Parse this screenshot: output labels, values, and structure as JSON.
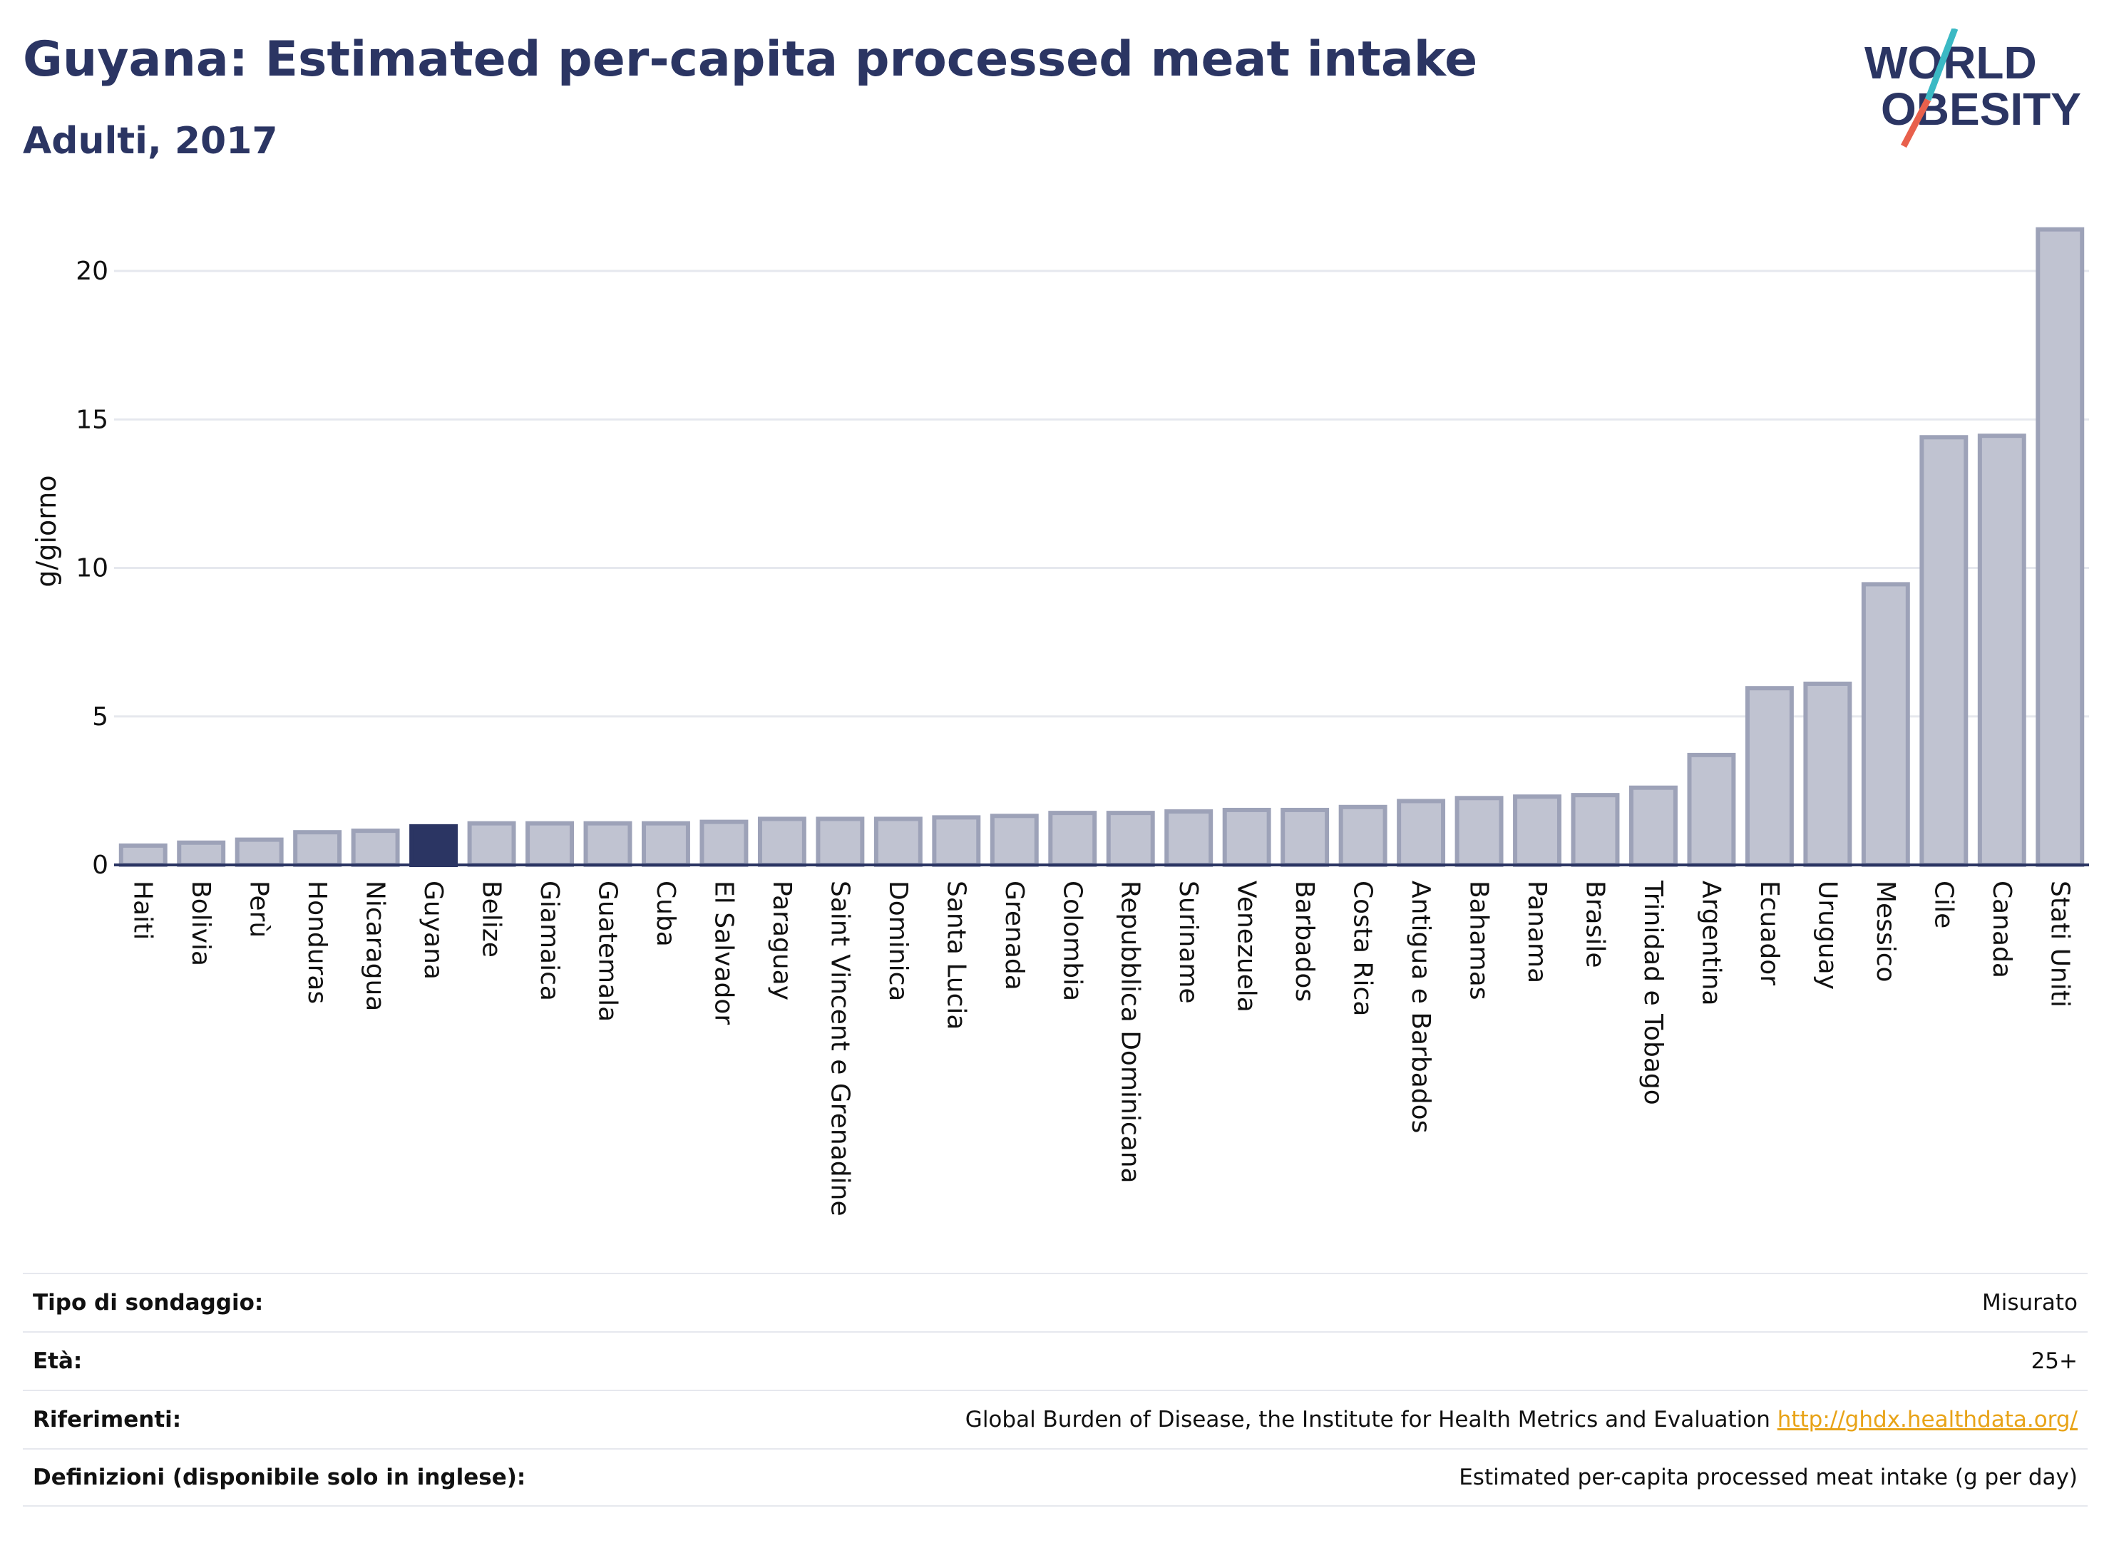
{
  "header": {
    "title": "Guyana: Estimated per-capita processed meat intake",
    "subtitle": "Adulti, 2017"
  },
  "logo": {
    "line1": "WORLD",
    "line2": "OBESITY",
    "accent_colors": [
      "#3bb9c4",
      "#e8604c"
    ]
  },
  "colors": {
    "bar": "#c0c3d1",
    "bar_border": "#9da2b8",
    "highlight": "#2b3563",
    "axis": "#2b3563",
    "grid": "#e6e8ee"
  },
  "chart_data": {
    "type": "bar",
    "title": "Guyana: Estimated per-capita processed meat intake",
    "subtitle": "Adulti, 2017",
    "ylabel": "g/giorno",
    "xlabel": "",
    "ylim": [
      0,
      22
    ],
    "yticks": [
      0,
      5,
      10,
      15,
      20
    ],
    "grid": true,
    "highlight": "Guyana",
    "categories": [
      "Haiti",
      "Bolivia",
      "Perù",
      "Honduras",
      "Nicaragua",
      "Guyana",
      "Belize",
      "Giamaica",
      "Guatemala",
      "Cuba",
      "El Salvador",
      "Paraguay",
      "Saint Vincent e Grenadine",
      "Dominica",
      "Santa Lucia",
      "Grenada",
      "Colombia",
      "Repubblica Dominicana",
      "Suriname",
      "Venezuela",
      "Barbados",
      "Costa Rica",
      "Antigua e Barbados",
      "Bahamas",
      "Panama",
      "Brasile",
      "Trinidad e Tobago",
      "Argentina",
      "Ecuador",
      "Uruguay",
      "Messico",
      "Cile",
      "Canada",
      "Stati Uniti"
    ],
    "values": [
      0.65,
      0.75,
      0.85,
      1.1,
      1.15,
      1.3,
      1.4,
      1.4,
      1.4,
      1.4,
      1.45,
      1.55,
      1.55,
      1.55,
      1.6,
      1.65,
      1.75,
      1.75,
      1.8,
      1.85,
      1.85,
      1.95,
      2.15,
      2.25,
      2.3,
      2.35,
      2.6,
      3.7,
      5.95,
      6.1,
      9.45,
      14.4,
      14.45,
      21.4
    ]
  },
  "meta": [
    {
      "label": "Tipo di sondaggio:",
      "value": "Misurato"
    },
    {
      "label": "Età:",
      "value": "25+"
    },
    {
      "label": "Riferimenti:",
      "value": "Global Burden of Disease, the Institute for Health Metrics and Evaluation",
      "link": "http://ghdx.healthdata.org/"
    },
    {
      "label": "Definizioni (disponibile solo in inglese):",
      "value": "Estimated per-capita processed meat intake (g per day)"
    }
  ]
}
